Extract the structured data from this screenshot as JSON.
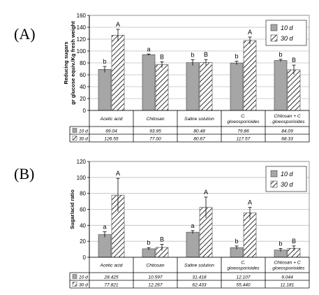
{
  "colors": {
    "bar_solid": "#a6a6a6",
    "hatch": "#000000",
    "grid": "#bfbfbf",
    "axis": "#000000"
  },
  "chart_data": [
    {
      "panel_label": "(A)",
      "type": "bar",
      "ylabel": [
        "Reducing sugars",
        "gr glucose equiv./Kg fresh weight"
      ],
      "ylim": [
        0,
        160
      ],
      "yticks": [
        0,
        20,
        40,
        60,
        80,
        100,
        120,
        140,
        160
      ],
      "grid": true,
      "legend_position": "top-right",
      "categories": [
        "Acetic acid",
        "Chitosan",
        "Saline solution",
        "C. gloeosporioides",
        "Chitosan + C. gloeosporioides"
      ],
      "series": [
        {
          "name": "10 d",
          "style": "solid",
          "values": [
            69.04,
            93.95,
            80.48,
            79.86,
            84.09
          ],
          "value_labels": [
            "69.04",
            "93.95",
            "80.48",
            "79.86",
            "84.09"
          ],
          "errors": [
            5,
            1,
            5,
            3,
            2
          ],
          "letters": [
            "b",
            "a",
            "b",
            "b",
            "b"
          ]
        },
        {
          "name": "30 d",
          "style": "hatched",
          "values": [
            126.55,
            77.0,
            80.67,
            117.57,
            68.33
          ],
          "value_labels": [
            "126.55",
            "77.00",
            "80.67",
            "117.57",
            "68.33"
          ],
          "errors": [
            10,
            5,
            5,
            6,
            8
          ],
          "letters": [
            "A",
            "B",
            "B",
            "A",
            "B"
          ]
        }
      ]
    },
    {
      "panel_label": "(B)",
      "type": "bar",
      "ylabel": [
        "Sugar/acid ratio"
      ],
      "ylim": [
        0,
        120
      ],
      "yticks": [
        0,
        20,
        40,
        60,
        80,
        100,
        120
      ],
      "grid": true,
      "legend_position": "top-right",
      "categories": [
        "Acetic acid",
        "Chitosan",
        "Saline solution",
        "C. gloeosporioides",
        "Chitosan + C. gloeosporioides"
      ],
      "series": [
        {
          "name": "10 d",
          "style": "solid",
          "values": [
            28.425,
            10.597,
            31.418,
            12.107,
            9.044
          ],
          "value_labels": [
            "28.425",
            "10.597",
            "31.418",
            "12.107",
            "9.044"
          ],
          "errors": [
            3.5,
            1.5,
            2,
            2,
            2
          ],
          "letters": [
            "a",
            "b",
            "a",
            "b",
            "b"
          ]
        },
        {
          "name": "30 d",
          "style": "hatched",
          "values": [
            77.821,
            12.267,
            62.433,
            55.44,
            11.181
          ],
          "value_labels": [
            "77.821",
            "12.267",
            "62.433",
            "55.440",
            "11.181"
          ],
          "errors": [
            21,
            4,
            13,
            7,
            3
          ],
          "letters": [
            "A",
            "B",
            "A",
            "A",
            "B"
          ]
        }
      ]
    }
  ]
}
